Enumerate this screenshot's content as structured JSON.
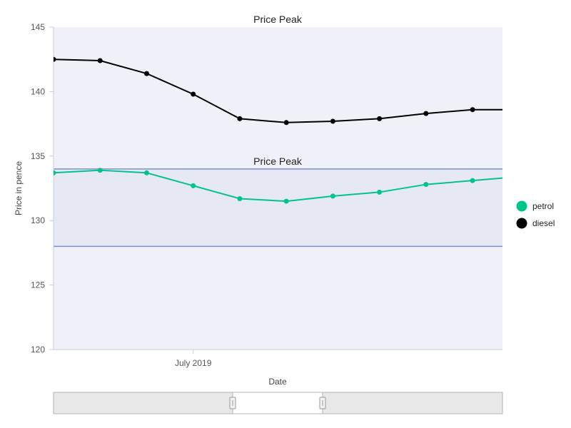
{
  "chart_data": {
    "type": "line",
    "title": "Price Peak",
    "xlabel": "Date",
    "ylabel": "Price in pence",
    "ylim": [
      120,
      145
    ],
    "yticks": [
      120,
      125,
      130,
      135,
      140,
      145
    ],
    "xticks": [
      "July 2019"
    ],
    "x": [
      "2019-05-20",
      "2019-06-03",
      "2019-06-17",
      "2019-07-01",
      "2019-07-15",
      "2019-07-29",
      "2019-08-12",
      "2019-08-26",
      "2019-09-09",
      "2019-09-23",
      "2019-10-07"
    ],
    "series": [
      {
        "name": "petrol",
        "color": "#00c48a",
        "values": [
          133.7,
          133.9,
          133.7,
          132.7,
          131.7,
          131.5,
          131.9,
          132.2,
          132.8,
          133.1,
          133.4
        ]
      },
      {
        "name": "diesel",
        "color": "#000000",
        "values": [
          142.5,
          142.4,
          141.4,
          139.8,
          137.9,
          137.6,
          137.7,
          137.9,
          138.3,
          138.6,
          138.6
        ]
      }
    ],
    "band": {
      "label": "Price Peak",
      "from": 128,
      "to": 134
    },
    "legend_position": "right",
    "grid": false,
    "colors": {
      "plot_background": "#f0f1f8",
      "band_fill": "#e6e8f3",
      "band_stroke": "#7f8fcf",
      "axis": "#c8cbdc"
    }
  },
  "range_selector": {
    "present": true
  }
}
